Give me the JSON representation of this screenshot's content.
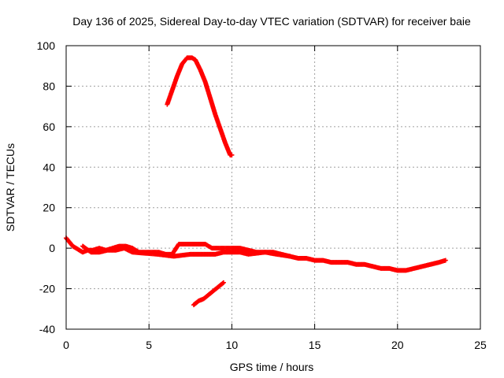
{
  "chart_data": {
    "type": "scatter",
    "title": "Day 136 of 2025, Sidereal Day-to-day VTEC variation (SDTVAR) for receiver baie",
    "xlabel": "GPS time / hours",
    "ylabel": "SDTVAR / TECUs",
    "xlim": [
      0,
      25
    ],
    "ylim": [
      -40,
      100
    ],
    "xticks": [
      0,
      5,
      10,
      15,
      20,
      25
    ],
    "yticks": [
      -40,
      -20,
      0,
      20,
      40,
      60,
      80,
      100
    ],
    "grid": true,
    "marker": "plus",
    "colors": {
      "series": "#ff0000",
      "grid": "#a0a0a0",
      "axes": "#000000"
    },
    "series": [
      {
        "name": "main-track",
        "x": [
          0.0,
          0.2,
          0.4,
          0.6,
          0.8,
          1.0,
          1.3,
          1.6,
          2.0,
          2.4,
          2.8,
          3.2,
          3.6,
          4.0,
          4.4,
          4.8,
          5.2,
          5.6,
          6.0,
          6.4,
          6.8,
          7.2,
          7.6,
          8.0,
          8.4,
          8.8,
          9.2,
          9.6,
          10.0,
          10.5,
          11.0,
          11.5,
          12.0,
          12.5,
          13.0,
          13.5,
          14.0,
          14.5,
          15.0,
          15.5,
          16.0,
          16.5,
          17.0,
          17.5,
          18.0,
          18.5,
          19.0,
          19.5,
          20.0,
          20.5,
          21.0,
          21.5,
          22.0,
          22.5,
          22.9
        ],
        "y": [
          5,
          3,
          1,
          0,
          -1,
          -2,
          -1,
          -1,
          0,
          -1,
          0,
          1,
          1,
          0,
          -2,
          -2,
          -2,
          -2,
          -3,
          -3,
          2,
          2,
          2,
          2,
          2,
          0,
          0,
          0,
          0,
          0,
          -1,
          -2,
          -2,
          -2,
          -3,
          -4,
          -5,
          -5,
          -6,
          -6,
          -7,
          -7,
          -7,
          -8,
          -8,
          -9,
          -10,
          -10,
          -11,
          -11,
          -10,
          -9,
          -8,
          -7,
          -6
        ]
      },
      {
        "name": "secondary-track",
        "x": [
          1.0,
          1.5,
          2.0,
          2.5,
          3.0,
          3.5,
          4.0,
          5.5,
          6.5,
          7.5,
          8.0,
          8.5,
          9.0,
          9.5,
          10.0,
          10.5,
          11.0,
          12.0,
          12.7,
          13.5
        ],
        "y": [
          1,
          -2,
          -2,
          -1,
          -1,
          0,
          -2,
          -3,
          -4,
          -3,
          -3,
          -3,
          -3,
          -2,
          -2,
          -2,
          -3,
          -2,
          -3,
          -4
        ]
      },
      {
        "name": "upper-arc",
        "x": [
          6.1,
          6.4,
          6.7,
          7.0,
          7.3,
          7.6,
          7.8,
          8.1,
          8.4,
          8.7,
          9.0,
          9.3,
          9.6,
          9.9,
          10.0
        ],
        "y": [
          71,
          78,
          85,
          91,
          94,
          94,
          93,
          88,
          82,
          74,
          66,
          59,
          52,
          46,
          46
        ]
      },
      {
        "name": "lower-segment",
        "x": [
          7.7,
          8.0,
          8.3,
          8.6,
          8.9,
          9.2,
          9.5
        ],
        "y": [
          -28,
          -26,
          -25,
          -23,
          -21,
          -19,
          -17
        ]
      }
    ]
  }
}
